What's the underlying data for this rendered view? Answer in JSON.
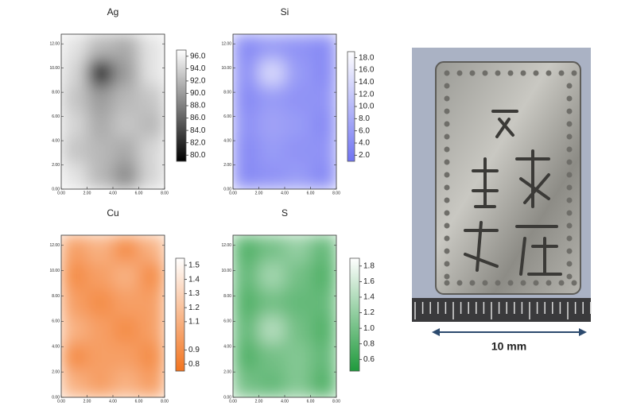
{
  "chart_data": [
    {
      "type": "heatmap",
      "title": "Ag",
      "z": [
        [
          95,
          92,
          91,
          95
        ],
        [
          94,
          82,
          90,
          95
        ],
        [
          93,
          90,
          92,
          93
        ],
        [
          94,
          91,
          93,
          92
        ],
        [
          93,
          92,
          91,
          94
        ],
        [
          95,
          92,
          89,
          94
        ]
      ],
      "xlim": [
        0,
        8
      ],
      "ylim": [
        0,
        12.8
      ],
      "xticks": [
        {
          "value": 0,
          "label": "0.00"
        },
        {
          "value": 2,
          "label": "2.00"
        },
        {
          "value": 4,
          "label": "4.00"
        },
        {
          "value": 6,
          "label": "6.00"
        },
        {
          "value": 8,
          "label": "8.00"
        }
      ],
      "yticks": [
        {
          "value": 0,
          "label": "0.00"
        },
        {
          "value": 2,
          "label": "2.00"
        },
        {
          "value": 4,
          "label": "4.00"
        },
        {
          "value": 6,
          "label": "6.00"
        },
        {
          "value": 8,
          "label": "8.00"
        },
        {
          "value": 10,
          "label": "10.00"
        },
        {
          "value": 12,
          "label": "12.00"
        }
      ],
      "zlim": [
        79,
        97
      ],
      "zticks": [
        {
          "value": 80,
          "label": "80.0"
        },
        {
          "value": 82,
          "label": "82.0"
        },
        {
          "value": 84,
          "label": "84.0"
        },
        {
          "value": 86,
          "label": "86.0"
        },
        {
          "value": 88,
          "label": "88.0"
        },
        {
          "value": 90,
          "label": "90.0"
        },
        {
          "value": 92,
          "label": "92.0"
        },
        {
          "value": 94,
          "label": "94.0"
        },
        {
          "value": 96,
          "label": "96.0"
        }
      ],
      "cmap": [
        "#000000",
        "#ffffff"
      ]
    },
    {
      "type": "heatmap",
      "title": "Si",
      "z": [
        [
          4,
          6,
          5,
          4
        ],
        [
          5,
          14,
          6,
          4
        ],
        [
          4,
          6,
          5,
          5
        ],
        [
          5,
          7,
          6,
          4
        ],
        [
          4,
          6,
          5,
          5
        ],
        [
          4,
          5,
          6,
          4
        ]
      ],
      "xlim": [
        0,
        8
      ],
      "ylim": [
        0,
        12.8
      ],
      "xticks": [
        {
          "value": 0,
          "label": "0.00"
        },
        {
          "value": 2,
          "label": "2.00"
        },
        {
          "value": 4,
          "label": "4.00"
        },
        {
          "value": 6,
          "label": "6.00"
        },
        {
          "value": 8,
          "label": "8.00"
        }
      ],
      "yticks": [
        {
          "value": 0,
          "label": "0.00"
        },
        {
          "value": 2,
          "label": "2.00"
        },
        {
          "value": 4,
          "label": "4.00"
        },
        {
          "value": 6,
          "label": "6.00"
        },
        {
          "value": 8,
          "label": "8.00"
        },
        {
          "value": 10,
          "label": "10.00"
        },
        {
          "value": 12,
          "label": "12.00"
        }
      ],
      "zlim": [
        1,
        19
      ],
      "zticks": [
        {
          "value": 2,
          "label": "2.0"
        },
        {
          "value": 4,
          "label": "4.0"
        },
        {
          "value": 6,
          "label": "6.0"
        },
        {
          "value": 8,
          "label": "8.0"
        },
        {
          "value": 10,
          "label": "10.0"
        },
        {
          "value": 12,
          "label": "12.0"
        },
        {
          "value": 14,
          "label": "14.0"
        },
        {
          "value": 16,
          "label": "16.0"
        },
        {
          "value": 18,
          "label": "18.0"
        }
      ],
      "cmap": [
        "#7074f2",
        "#ffffff"
      ]
    },
    {
      "type": "heatmap",
      "title": "Cu",
      "z": [
        [
          1.0,
          1.1,
          0.9,
          1.1
        ],
        [
          0.9,
          1.0,
          1.1,
          0.9
        ],
        [
          1.0,
          0.9,
          1.0,
          1.0
        ],
        [
          1.1,
          1.0,
          0.9,
          1.0
        ],
        [
          0.9,
          1.0,
          1.0,
          0.9
        ],
        [
          1.1,
          1.0,
          1.1,
          1.0
        ]
      ],
      "xlim": [
        0,
        8
      ],
      "ylim": [
        0,
        12.8
      ],
      "xticks": [
        {
          "value": 0,
          "label": "0.00"
        },
        {
          "value": 2,
          "label": "2.00"
        },
        {
          "value": 4,
          "label": "4.00"
        },
        {
          "value": 6,
          "label": "6.00"
        },
        {
          "value": 8,
          "label": "8.00"
        }
      ],
      "yticks": [
        {
          "value": 0,
          "label": "0.00"
        },
        {
          "value": 2,
          "label": "2.00"
        },
        {
          "value": 4,
          "label": "4.00"
        },
        {
          "value": 6,
          "label": "6.00"
        },
        {
          "value": 8,
          "label": "8.00"
        },
        {
          "value": 10,
          "label": "10.00"
        },
        {
          "value": 12,
          "label": "12.00"
        }
      ],
      "zlim": [
        0.75,
        1.55
      ],
      "zticks": [
        0.8,
        0.9,
        1.1,
        1.2,
        1.3,
        1.4,
        1.5
      ],
      "cmap": [
        "#f2741f",
        "#ffffff"
      ]
    },
    {
      "type": "heatmap",
      "title": "S",
      "z": [
        [
          0.8,
          1.0,
          1.2,
          0.9
        ],
        [
          0.9,
          1.3,
          1.0,
          0.8
        ],
        [
          0.8,
          1.0,
          0.9,
          0.9
        ],
        [
          0.9,
          1.4,
          1.0,
          0.8
        ],
        [
          0.8,
          1.0,
          1.1,
          0.9
        ],
        [
          1.0,
          0.9,
          1.1,
          0.8
        ]
      ],
      "xlim": [
        0,
        8
      ],
      "ylim": [
        0,
        12.8
      ],
      "xticks": [
        {
          "value": 0,
          "label": "0.00"
        },
        {
          "value": 2,
          "label": "2.00"
        },
        {
          "value": 4,
          "label": "4.00"
        },
        {
          "value": 6,
          "label": "6.00"
        },
        {
          "value": 8,
          "label": "8.00"
        }
      ],
      "yticks": [
        {
          "value": 0,
          "label": "0.00"
        },
        {
          "value": 2,
          "label": "2.00"
        },
        {
          "value": 4,
          "label": "4.00"
        },
        {
          "value": 6,
          "label": "6.00"
        },
        {
          "value": 8,
          "label": "8.00"
        },
        {
          "value": 10,
          "label": "10.00"
        },
        {
          "value": 12,
          "label": "12.00"
        }
      ],
      "zlim": [
        0.45,
        1.9
      ],
      "zticks": [
        0.6,
        0.8,
        {
          "value": 1.0,
          "label": "1.0"
        },
        1.2,
        1.4,
        1.6,
        1.8
      ],
      "cmap": [
        "#1f9a3c",
        "#ffffff"
      ]
    }
  ],
  "photo": {
    "scale_label": "10 mm"
  }
}
